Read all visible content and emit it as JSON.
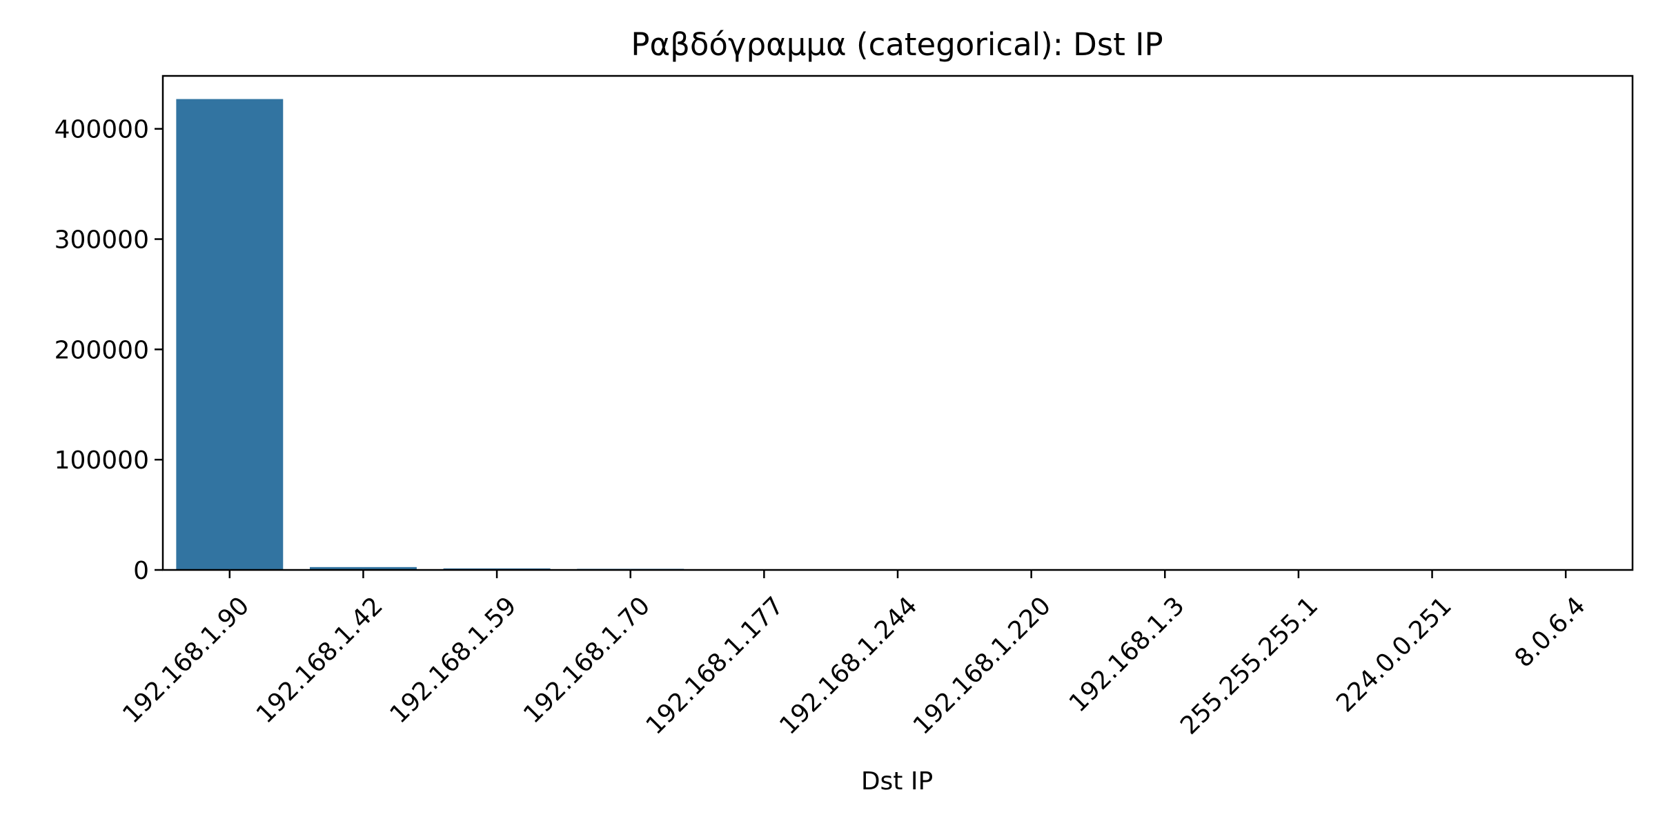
{
  "chart_data": {
    "type": "bar",
    "title": "Ραβδόγραμμα (categorical): Dst IP",
    "xlabel": "Dst IP",
    "ylabel": "",
    "categories": [
      "192.168.1.90",
      "192.168.1.42",
      "192.168.1.59",
      "192.168.1.70",
      "192.168.1.177",
      "192.168.1.244",
      "192.168.1.220",
      "192.168.1.3",
      "255.255.255.1",
      "224.0.0.251",
      "8.0.6.4"
    ],
    "values": [
      427000,
      2600,
      1400,
      1000,
      150,
      100,
      80,
      60,
      40,
      30,
      20
    ],
    "ylim": [
      0,
      448000
    ],
    "yticks": [
      0,
      100000,
      200000,
      300000,
      400000
    ],
    "bar_color": "#3274a1",
    "grid": false,
    "legend": "none"
  }
}
